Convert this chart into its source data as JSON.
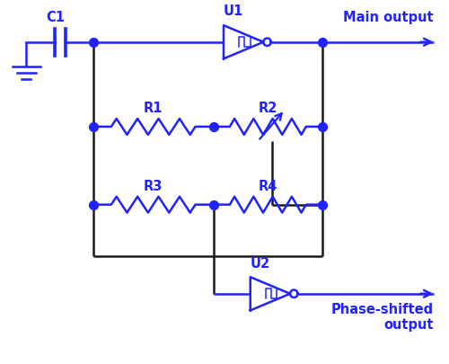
{
  "wire_color": "#2222ff",
  "black_color": "#1a1a1a",
  "dot_color": "#2222ff",
  "bg_color": "#ffffff",
  "label_color": "#2222ff",
  "figsize": [
    5.0,
    4.06
  ],
  "dpi": 100,
  "xlim": [
    0,
    10
  ],
  "ylim": [
    0,
    8.12
  ],
  "lw": 1.8,
  "dot_size": 50,
  "font_size": 10.5
}
